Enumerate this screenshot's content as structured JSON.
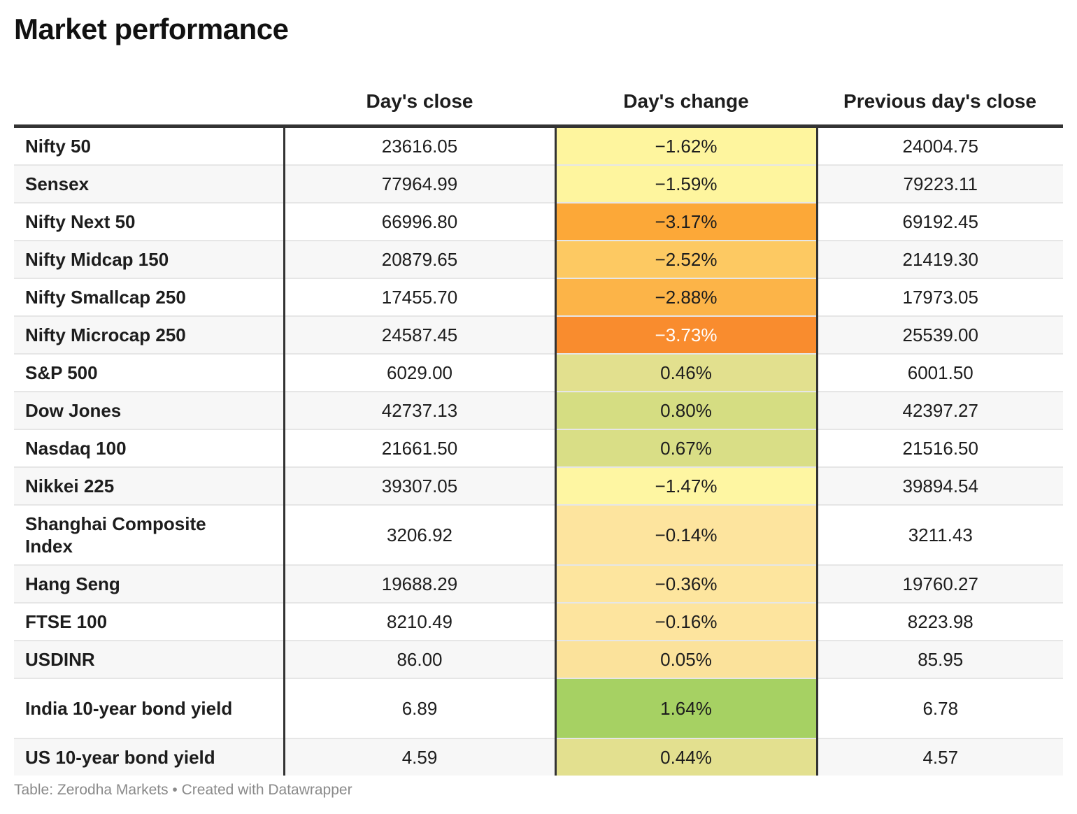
{
  "title": "Market performance",
  "footer": "Table: Zerodha Markets • Created with Datawrapper",
  "chart_data": {
    "type": "table",
    "title": "Market performance",
    "columns": [
      "",
      "Day's close",
      "Day's change",
      "Previous day's close"
    ],
    "rows": [
      {
        "name": "Nifty 50",
        "close": "23616.05",
        "change": "−1.62%",
        "prev": "24004.75",
        "bg": "#fef59e",
        "fg": "#1d1d1d"
      },
      {
        "name": "Sensex",
        "close": "77964.99",
        "change": "−1.59%",
        "prev": "79223.11",
        "bg": "#fef59e",
        "fg": "#1d1d1d"
      },
      {
        "name": "Nifty Next 50",
        "close": "66996.80",
        "change": "−3.17%",
        "prev": "69192.45",
        "bg": "#fca838",
        "fg": "#1d1d1d"
      },
      {
        "name": "Nifty Midcap 150",
        "close": "20879.65",
        "change": "−2.52%",
        "prev": "21419.30",
        "bg": "#fdc962",
        "fg": "#1d1d1d"
      },
      {
        "name": "Nifty Smallcap 250",
        "close": "17455.70",
        "change": "−2.88%",
        "prev": "17973.05",
        "bg": "#fcb448",
        "fg": "#1d1d1d"
      },
      {
        "name": "Nifty Microcap 250",
        "close": "24587.45",
        "change": "−3.73%",
        "prev": "25539.00",
        "bg": "#f98c2e",
        "fg": "#ffffff"
      },
      {
        "name": "S&P 500",
        "close": "6029.00",
        "change": "0.46%",
        "prev": "6001.50",
        "bg": "#e2e08e",
        "fg": "#1d1d1d"
      },
      {
        "name": "Dow Jones",
        "close": "42737.13",
        "change": "0.80%",
        "prev": "42397.27",
        "bg": "#d5dd82",
        "fg": "#1d1d1d"
      },
      {
        "name": "Nasdaq 100",
        "close": "21661.50",
        "change": "0.67%",
        "prev": "21516.50",
        "bg": "#d9de86",
        "fg": "#1d1d1d"
      },
      {
        "name": "Nikkei 225",
        "close": "39307.05",
        "change": "−1.47%",
        "prev": "39894.54",
        "bg": "#fef6a2",
        "fg": "#1d1d1d"
      },
      {
        "name": "Shanghai Composite Index",
        "close": "3206.92",
        "change": "−0.14%",
        "prev": "3211.43",
        "bg": "#fde49e",
        "fg": "#1d1d1d"
      },
      {
        "name": "Hang Seng",
        "close": "19688.29",
        "change": "−0.36%",
        "prev": "19760.27",
        "bg": "#fde59e",
        "fg": "#1d1d1d"
      },
      {
        "name": "FTSE 100",
        "close": "8210.49",
        "change": "−0.16%",
        "prev": "8223.98",
        "bg": "#fde49e",
        "fg": "#1d1d1d"
      },
      {
        "name": "USDINR",
        "close": "86.00",
        "change": "0.05%",
        "prev": "85.95",
        "bg": "#fbe29b",
        "fg": "#1d1d1d"
      },
      {
        "name": "India 10-year bond yield",
        "close": "6.89",
        "change": "1.64%",
        "prev": "6.78",
        "bg": "#a6d163",
        "fg": "#1d1d1d"
      },
      {
        "name": "US 10-year bond yield",
        "close": "4.59",
        "change": "0.44%",
        "prev": "4.57",
        "bg": "#e3e08f",
        "fg": "#1d1d1d"
      }
    ]
  }
}
